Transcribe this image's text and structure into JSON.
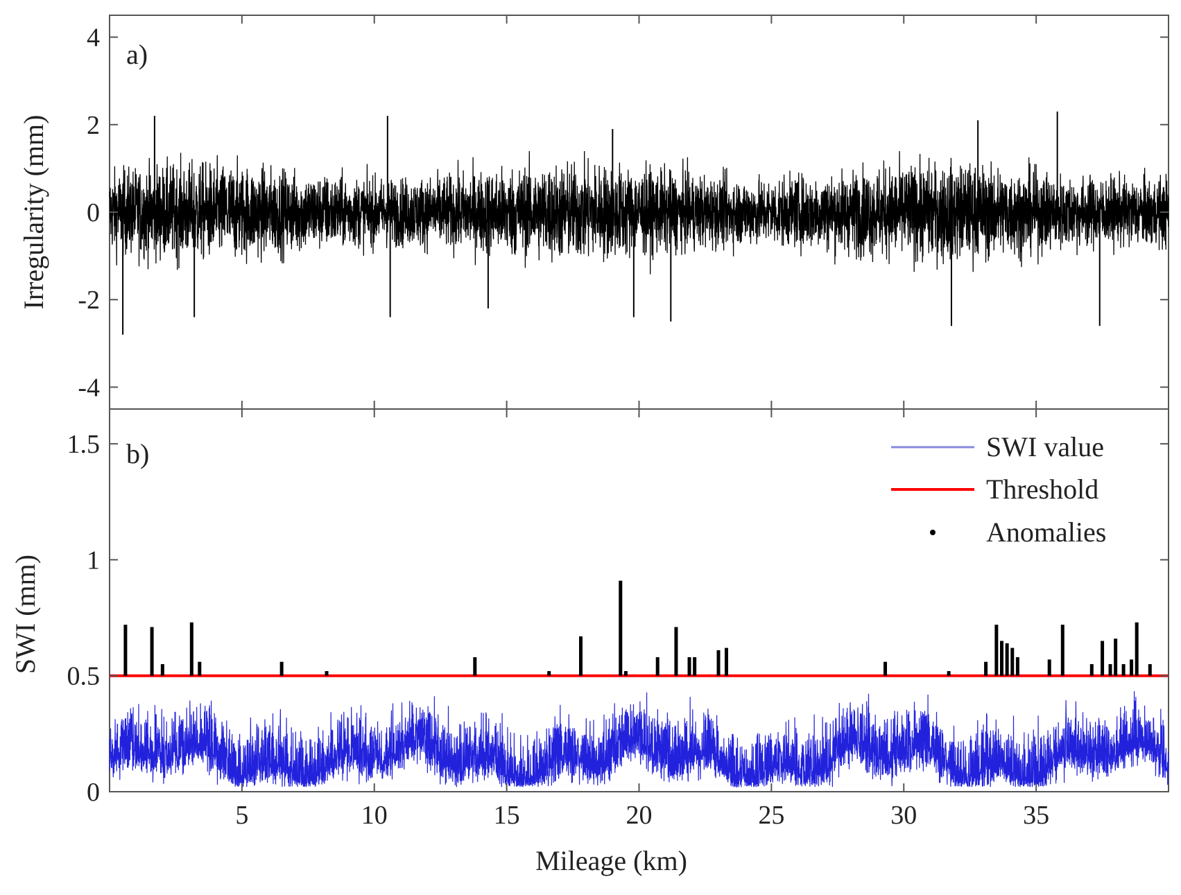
{
  "chart_data": [
    {
      "panel": "a)",
      "type": "line",
      "xlabel": "",
      "ylabel": "Irregularity (mm)",
      "xlim": [
        0,
        40
      ],
      "ylim": [
        -4.5,
        4.5
      ],
      "yticks": [
        -4,
        -2,
        0,
        2,
        4
      ],
      "ytick_labels": [
        "-4",
        "-2",
        "0",
        "2",
        "4"
      ],
      "xticks": [
        5,
        10,
        15,
        20,
        25,
        30,
        35
      ],
      "series": [
        {
          "name": "Irregularity",
          "color": "#000000",
          "n_points": 6000,
          "typical_amplitude_mm": 1.2,
          "peaks": [
            {
              "x": 0.5,
              "y": -2.8
            },
            {
              "x": 1.7,
              "y": 2.2
            },
            {
              "x": 3.2,
              "y": -2.4
            },
            {
              "x": 10.5,
              "y": 2.2
            },
            {
              "x": 10.6,
              "y": -2.4
            },
            {
              "x": 14.3,
              "y": -2.2
            },
            {
              "x": 19.0,
              "y": 1.9
            },
            {
              "x": 19.8,
              "y": -2.4
            },
            {
              "x": 21.2,
              "y": -2.5
            },
            {
              "x": 31.8,
              "y": -2.6
            },
            {
              "x": 32.8,
              "y": 2.1
            },
            {
              "x": 35.8,
              "y": 2.3
            },
            {
              "x": 37.4,
              "y": -2.6
            }
          ]
        }
      ]
    },
    {
      "panel": "b)",
      "type": "line",
      "xlabel": "Mileage (km)",
      "ylabel": "SWI (mm)",
      "xlim": [
        0,
        40
      ],
      "ylim": [
        0,
        1.65
      ],
      "yticks": [
        0,
        0.5,
        1,
        1.5
      ],
      "ytick_labels": [
        "0",
        "0.5",
        "1",
        "1.5"
      ],
      "xticks": [
        5,
        10,
        15,
        20,
        25,
        30,
        35
      ],
      "xtick_labels": [
        "5",
        "10",
        "15",
        "20",
        "25",
        "30",
        "35"
      ],
      "threshold": 0.5,
      "series": [
        {
          "name": "SWI value",
          "color": "#2222dd",
          "n_points": 6000,
          "range": [
            0.02,
            0.5
          ]
        },
        {
          "name": "Threshold",
          "color": "#ff0000",
          "value": 0.5
        },
        {
          "name": "Anomalies",
          "color": "#000000",
          "spikes": [
            {
              "x": 0.6,
              "y": 0.72
            },
            {
              "x": 1.6,
              "y": 0.71
            },
            {
              "x": 2.0,
              "y": 0.55
            },
            {
              "x": 3.1,
              "y": 0.73
            },
            {
              "x": 3.4,
              "y": 0.56
            },
            {
              "x": 6.5,
              "y": 0.56
            },
            {
              "x": 8.2,
              "y": 0.52
            },
            {
              "x": 13.8,
              "y": 0.58
            },
            {
              "x": 16.6,
              "y": 0.52
            },
            {
              "x": 17.8,
              "y": 0.67
            },
            {
              "x": 19.3,
              "y": 0.91
            },
            {
              "x": 19.5,
              "y": 0.52
            },
            {
              "x": 20.7,
              "y": 0.58
            },
            {
              "x": 21.4,
              "y": 0.71
            },
            {
              "x": 21.9,
              "y": 0.58
            },
            {
              "x": 22.1,
              "y": 0.58
            },
            {
              "x": 23.0,
              "y": 0.61
            },
            {
              "x": 23.3,
              "y": 0.62
            },
            {
              "x": 29.3,
              "y": 0.56
            },
            {
              "x": 31.7,
              "y": 0.52
            },
            {
              "x": 33.1,
              "y": 0.56
            },
            {
              "x": 33.5,
              "y": 0.72
            },
            {
              "x": 33.7,
              "y": 0.65
            },
            {
              "x": 33.9,
              "y": 0.64
            },
            {
              "x": 34.1,
              "y": 0.62
            },
            {
              "x": 34.3,
              "y": 0.58
            },
            {
              "x": 35.5,
              "y": 0.57
            },
            {
              "x": 36.0,
              "y": 0.72
            },
            {
              "x": 37.1,
              "y": 0.55
            },
            {
              "x": 37.5,
              "y": 0.65
            },
            {
              "x": 37.8,
              "y": 0.55
            },
            {
              "x": 38.0,
              "y": 0.66
            },
            {
              "x": 38.3,
              "y": 0.55
            },
            {
              "x": 38.6,
              "y": 0.57
            },
            {
              "x": 38.8,
              "y": 0.73
            },
            {
              "x": 39.3,
              "y": 0.55
            }
          ]
        }
      ],
      "legend": [
        {
          "label": "SWI value",
          "color": "#8888dd",
          "marker": "line"
        },
        {
          "label": "Threshold",
          "color": "#ff0000",
          "marker": "line"
        },
        {
          "label": "Anomalies",
          "color": "#000000",
          "marker": "dot"
        }
      ],
      "legend_location": "top-right"
    }
  ]
}
